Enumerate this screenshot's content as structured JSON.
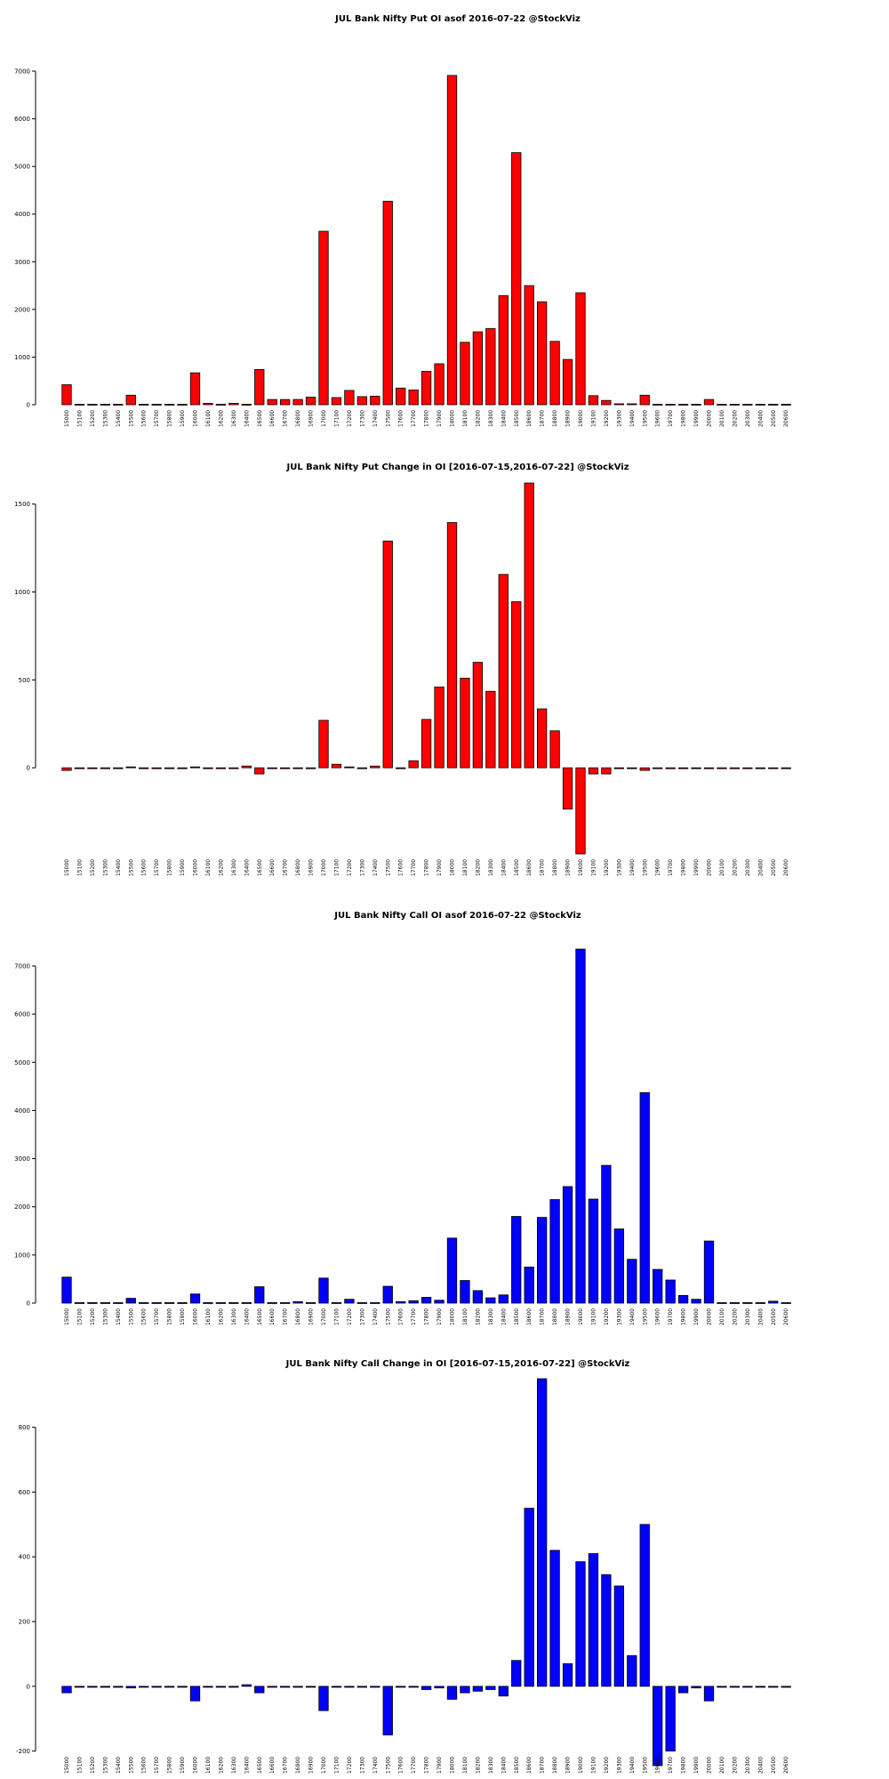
{
  "strikes": [
    "15000",
    "15100",
    "15200",
    "15300",
    "15400",
    "15500",
    "15600",
    "15700",
    "15800",
    "15900",
    "16000",
    "16100",
    "16200",
    "16300",
    "16400",
    "16500",
    "16600",
    "16700",
    "16800",
    "16900",
    "17000",
    "17100",
    "17200",
    "17300",
    "17400",
    "17500",
    "17600",
    "17700",
    "17800",
    "17900",
    "18000",
    "18100",
    "18200",
    "18300",
    "18400",
    "18500",
    "18600",
    "18700",
    "18800",
    "18900",
    "19000",
    "19100",
    "19200",
    "19300",
    "19400",
    "19500",
    "19600",
    "19700",
    "19800",
    "19900",
    "20000",
    "20100",
    "20200",
    "20300",
    "20400",
    "20500",
    "20600"
  ],
  "chart_data": [
    {
      "type": "bar",
      "title": "JUL Bank Nifty Put OI asof 2016-07-22 @StockViz",
      "color": "#ff0000",
      "ylim": [
        0,
        7000
      ],
      "yticks": [
        0,
        1000,
        2000,
        3000,
        4000,
        5000,
        6000,
        7000
      ],
      "values": [
        420,
        10,
        10,
        10,
        10,
        200,
        10,
        10,
        10,
        10,
        670,
        30,
        10,
        30,
        10,
        740,
        110,
        110,
        110,
        160,
        3640,
        150,
        300,
        170,
        180,
        4270,
        350,
        310,
        700,
        860,
        6910,
        1310,
        1530,
        1600,
        2290,
        5290,
        2500,
        2160,
        1330,
        950,
        2350,
        190,
        90,
        20,
        20,
        200,
        10,
        10,
        10,
        10,
        110,
        10,
        10,
        10,
        10,
        10,
        10
      ]
    },
    {
      "type": "bar",
      "title": "JUL Bank Nifty Put Change in OI [2016-07-15,2016-07-22] @StockViz",
      "color": "#ff0000",
      "ylim": [
        -490,
        1620
      ],
      "yticks": [
        0,
        500,
        1000,
        1500
      ],
      "values": [
        -15,
        -3,
        -3,
        -3,
        -3,
        5,
        -3,
        -3,
        -3,
        -3,
        5,
        -3,
        -3,
        -3,
        10,
        -35,
        -3,
        -3,
        -3,
        -3,
        270,
        20,
        5,
        -3,
        10,
        1290,
        -3,
        40,
        275,
        460,
        1395,
        510,
        600,
        435,
        1100,
        945,
        1620,
        335,
        210,
        -235,
        -490,
        -35,
        -35,
        -3,
        -3,
        -15,
        -3,
        -3,
        -3,
        -3,
        -3,
        -3,
        -3,
        -3,
        -3,
        -3,
        -3
      ]
    },
    {
      "type": "bar",
      "title": "JUL Bank Nifty Call OI asof 2016-07-22 @StockViz",
      "color": "#0000ff",
      "ylim": [
        0,
        7350
      ],
      "yticks": [
        0,
        1000,
        2000,
        3000,
        4000,
        5000,
        6000,
        7000
      ],
      "values": [
        540,
        10,
        10,
        10,
        10,
        100,
        10,
        10,
        10,
        10,
        190,
        10,
        10,
        10,
        10,
        340,
        10,
        10,
        30,
        10,
        520,
        10,
        80,
        10,
        10,
        350,
        30,
        50,
        120,
        60,
        1350,
        470,
        260,
        110,
        170,
        1800,
        750,
        1780,
        2150,
        2420,
        7350,
        2160,
        2860,
        1540,
        910,
        4370,
        700,
        480,
        160,
        80,
        1290,
        10,
        10,
        10,
        10,
        40,
        10
      ]
    },
    {
      "type": "bar",
      "title": "JUL Bank Nifty Call Change in OI [2016-07-15,2016-07-22] @StockViz",
      "color": "#0000ff",
      "ylim": [
        -245,
        950
      ],
      "yticks": [
        -200,
        0,
        200,
        400,
        600,
        800
      ],
      "values": [
        -20,
        -3,
        -3,
        -3,
        -3,
        -5,
        -3,
        -3,
        -3,
        -3,
        -45,
        -3,
        -3,
        -3,
        5,
        -20,
        -3,
        -3,
        -3,
        -3,
        -75,
        -3,
        -3,
        -3,
        -3,
        -150,
        -3,
        -3,
        -10,
        -5,
        -40,
        -20,
        -15,
        -10,
        -30,
        80,
        550,
        950,
        420,
        70,
        385,
        410,
        345,
        310,
        95,
        500,
        -245,
        -200,
        -20,
        -5,
        -45,
        -3,
        -3,
        -3,
        -3,
        -3,
        -3
      ]
    }
  ]
}
